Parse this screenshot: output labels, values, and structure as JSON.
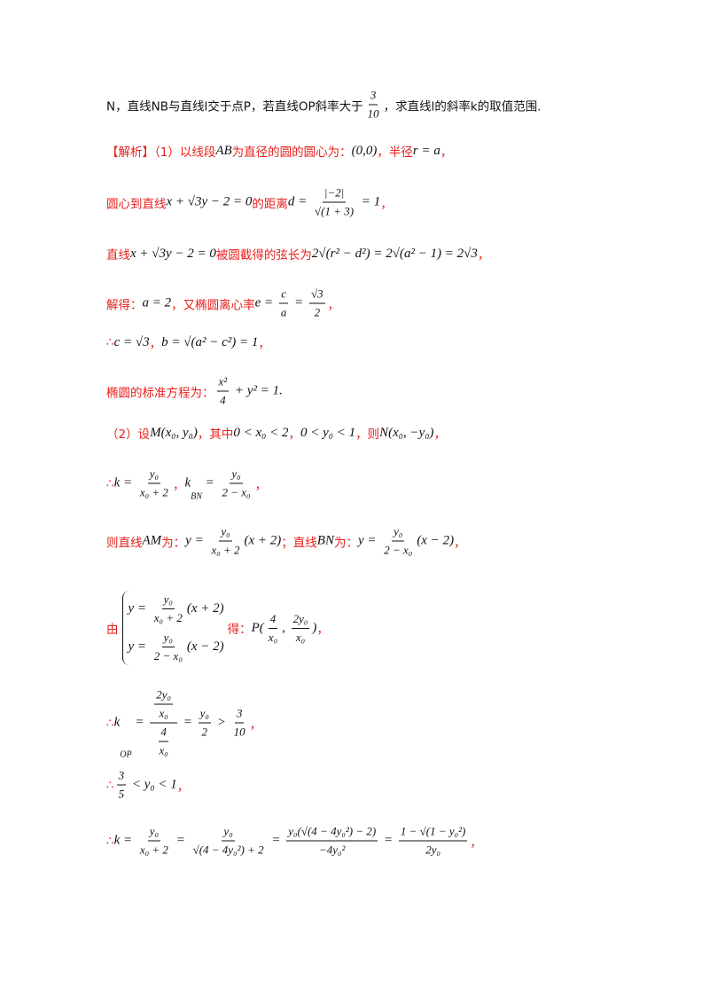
{
  "lines": [
    [
      {
        "b": "N，直线NB与直线l交于点P，若直线OP斜率大于"
      },
      {
        "f": [
          "3",
          "10"
        ]
      },
      {
        "b": "，求直线l的斜率k的取值范围."
      }
    ],
    [
      {
        "t": "【解析】（1）以线段"
      },
      {
        "m": "AB"
      },
      {
        "t": "为直径的圆的圆心为："
      },
      {
        "m": "(0,0)"
      },
      {
        "t": "，半径"
      },
      {
        "m": "r = a"
      },
      {
        "t": "，"
      }
    ],
    [
      {
        "t": "圆心到直线"
      },
      {
        "m": "x + √3y − 2 = 0"
      },
      {
        "t": "的距离"
      },
      {
        "m": "d = "
      },
      {
        "f": [
          "|−2|",
          "√(1 + 3)"
        ]
      },
      {
        "m": " = 1"
      },
      {
        "t": "，"
      }
    ],
    [
      {
        "t": "直线"
      },
      {
        "m": "x + √3y − 2 = 0"
      },
      {
        "t": "被圆截得的弦长为"
      },
      {
        "m": "2√(r² − d²) = 2√(a² − 1) = 2√3"
      },
      {
        "t": "，"
      }
    ],
    [
      {
        "t": "解得："
      },
      {
        "m": "a = 2"
      },
      {
        "t": "，又椭圆离心率"
      },
      {
        "m": "e = "
      },
      {
        "f": [
          "c",
          "a"
        ]
      },
      {
        "m": " = "
      },
      {
        "f": [
          "√3",
          "2"
        ]
      },
      {
        "t": "，"
      }
    ],
    [
      {
        "t": "∴ "
      },
      {
        "m": "c = √3"
      },
      {
        "t": "，"
      },
      {
        "m": "b = √(a² − c²) = 1"
      },
      {
        "t": "，"
      }
    ],
    [
      {
        "t": "椭圆的标准方程为："
      },
      {
        "f": [
          "x²",
          "4"
        ]
      },
      {
        "m": " + y² = 1."
      }
    ],
    [
      {
        "t": "（2）设"
      },
      {
        "m": "M(x₀, y₀)"
      },
      {
        "t": "，其中"
      },
      {
        "m": "0 < x₀ < 2"
      },
      {
        "t": "，"
      },
      {
        "m": "0 < y₀ < 1"
      },
      {
        "t": "，则"
      },
      {
        "m": "N(x₀, −y₀)"
      },
      {
        "t": "，"
      }
    ],
    [
      {
        "t": "∴ "
      },
      {
        "m": "k = "
      },
      {
        "f": [
          "y₀",
          "x₀ + 2"
        ]
      },
      {
        "t": "，"
      },
      {
        "m": "k"
      },
      {
        "sub": "BN"
      },
      {
        "m": " = "
      },
      {
        "f": [
          "y₀",
          "2 − x₀"
        ]
      },
      {
        "t": "，"
      }
    ],
    [
      {
        "t": "则直线"
      },
      {
        "m": "AM"
      },
      {
        "t": "为："
      },
      {
        "m": "y = "
      },
      {
        "f": [
          "y₀",
          "x₀ + 2"
        ]
      },
      {
        "m": "(x + 2)"
      },
      {
        "t": "；直线"
      },
      {
        "m": "BN"
      },
      {
        "t": "为："
      },
      {
        "m": "y = "
      },
      {
        "f": [
          "y₀",
          "2 − x₀"
        ]
      },
      {
        "m": "(x − 2)"
      },
      {
        "t": "，"
      }
    ],
    [
      {
        "t": "由"
      },
      {
        "sys": [
          [
            {
              "m": "y = "
            },
            {
              "f": [
                "y₀",
                "x₀ + 2"
              ]
            },
            {
              "m": "(x + 2)"
            }
          ],
          [
            {
              "m": "y = "
            },
            {
              "f": [
                "y₀",
                "2 − x₀"
              ]
            },
            {
              "m": "(x − 2)"
            }
          ]
        ]
      },
      {
        "t": "得："
      },
      {
        "m": "P("
      },
      {
        "f": [
          "4",
          "x₀"
        ]
      },
      {
        "m": ", "
      },
      {
        "f": [
          "2y₀",
          "x₀"
        ]
      },
      {
        "m": ")"
      },
      {
        "t": "，"
      }
    ],
    [
      {
        "t": "∴ "
      },
      {
        "m": "k"
      },
      {
        "sub": "OP"
      },
      {
        "m": " = "
      },
      {
        "f": [
          [
            {
              "f": [
                "2y₀",
                "x₀"
              ]
            }
          ],
          [
            {
              "f": [
                "4",
                "x₀"
              ]
            }
          ]
        ]
      },
      {
        "m": " = "
      },
      {
        "f": [
          "y₀",
          "2"
        ]
      },
      {
        "m": " > "
      },
      {
        "f": [
          "3",
          "10"
        ]
      },
      {
        "t": "，"
      }
    ],
    [
      {
        "t": "∴ "
      },
      {
        "f": [
          "3",
          "5"
        ]
      },
      {
        "m": " < y₀ < 1"
      },
      {
        "t": "，"
      }
    ],
    [
      {
        "t": "∴ "
      },
      {
        "m": "k = "
      },
      {
        "f": [
          "y₀",
          "x₀ + 2"
        ]
      },
      {
        "m": " = "
      },
      {
        "f": [
          "y₀",
          "√(4 − 4y₀²) + 2"
        ]
      },
      {
        "m": " = "
      },
      {
        "f": [
          "y₀(√(4 − 4y₀²) − 2)",
          "−4y₀²"
        ]
      },
      {
        "m": " = "
      },
      {
        "f": [
          "1 − √(1 − y₀²)",
          "2y₀"
        ]
      },
      {
        "t": "，"
      }
    ]
  ]
}
